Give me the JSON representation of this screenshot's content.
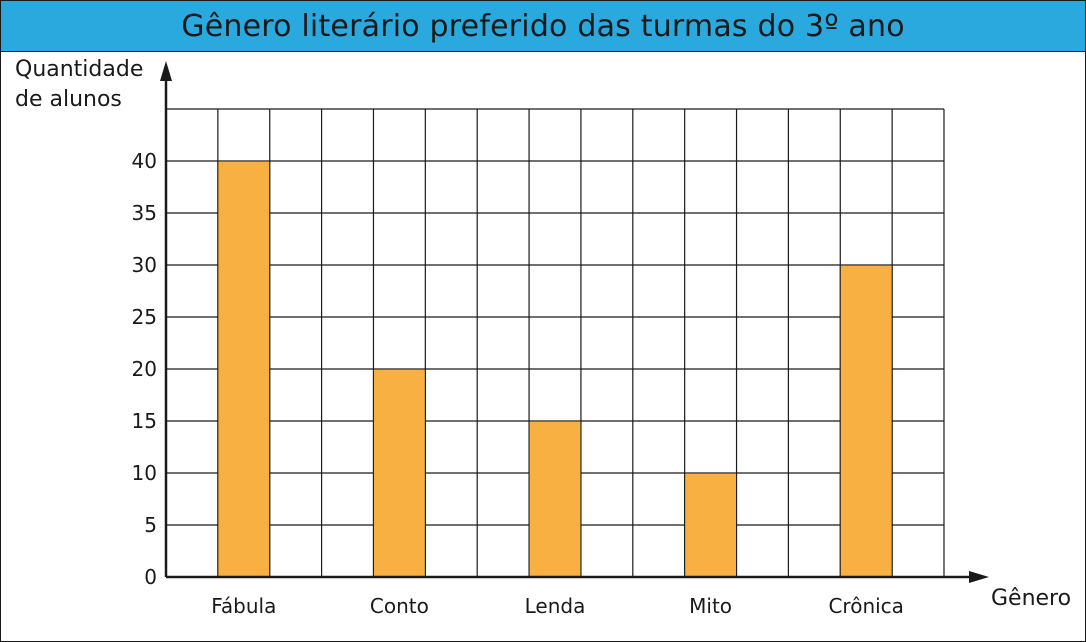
{
  "chart_data": {
    "type": "bar",
    "title": "Gênero literário preferido das turmas do 3º ano",
    "ylabel_line1": "Quantidade",
    "ylabel_line2": "de alunos",
    "xlabel": "Gênero",
    "categories": [
      "Fábula",
      "Conto",
      "Lenda",
      "Mito",
      "Crônica"
    ],
    "values": [
      40,
      20,
      15,
      10,
      30
    ],
    "yticks": [
      0,
      5,
      10,
      15,
      20,
      25,
      30,
      35,
      40
    ],
    "ylim": [
      0,
      45
    ],
    "grid": true,
    "bar_color": "#f9b042"
  },
  "colors": {
    "title_bar": "#2aa9df",
    "bar": "#f9b042",
    "grid": "#1a1a1a"
  }
}
